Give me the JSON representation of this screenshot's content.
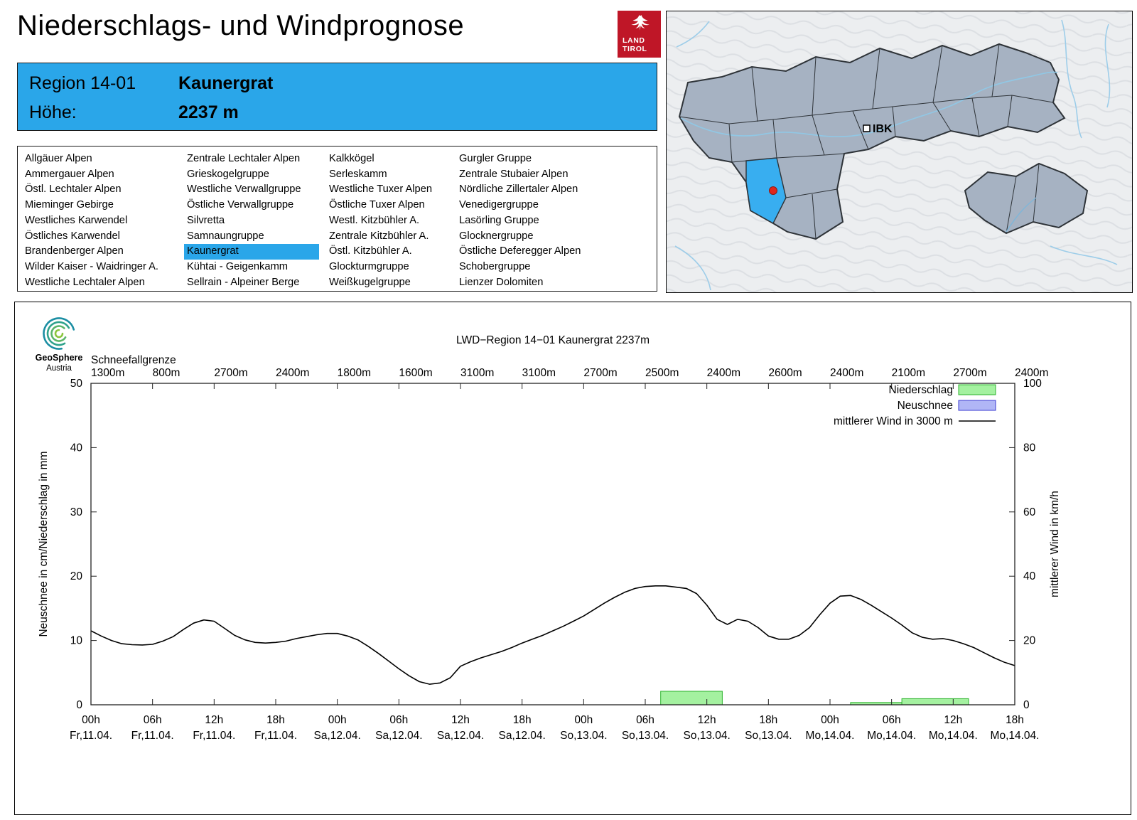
{
  "page": {
    "title": "Niederschlags- und Windprognose"
  },
  "brand": {
    "line1": "LAND",
    "line2": "TIROL"
  },
  "region_info": {
    "region_label": "Region 14-01",
    "region_name": "Kaunergrat",
    "altitude_label": "Höhe:",
    "altitude_value": "2237 m"
  },
  "region_list": {
    "selected": "Kaunergrat",
    "columns": [
      [
        "Allgäuer Alpen",
        "Ammergauer Alpen",
        "Östl. Lechtaler Alpen",
        "Mieminger Gebirge",
        "Westliches Karwendel",
        "Östliches Karwendel",
        "Brandenberger Alpen",
        "Wilder Kaiser - Waidringer A.",
        "Westliche Lechtaler Alpen"
      ],
      [
        "Zentrale Lechtaler Alpen",
        "Grieskogelgruppe",
        "Westliche Verwallgruppe",
        "Östliche Verwallgruppe",
        "Silvretta",
        "Samnaungruppe",
        "Kaunergrat",
        "Kühtai - Geigenkamm",
        "Sellrain - Alpeiner Berge"
      ],
      [
        "Kalkkögel",
        "Serleskamm",
        "Westliche Tuxer Alpen",
        "Östliche Tuxer Alpen",
        "Westl. Kitzbühler A.",
        "Zentrale Kitzbühler A.",
        "Östl. Kitzbühler A.",
        "Glockturmgruppe",
        "Weißkugelgruppe"
      ],
      [
        "Gurgler Gruppe",
        "Zentrale Stubaier Alpen",
        "Nördliche Zillertaler Alpen",
        "Venedigergruppe",
        "Lasörling Gruppe",
        "Glocknergruppe",
        "Östliche Deferegger Alpen",
        "Schobergruppe",
        "Lienzer Dolomiten"
      ]
    ]
  },
  "map": {
    "city_label": "IBK",
    "highlight_color": "#38aef0"
  },
  "logo_geosphere": {
    "name": "GeoSphere",
    "sub": "Austria"
  },
  "chart_data": {
    "type": "line+bar",
    "title": "LWD−Region 14−01 Kaunergrat 2237m",
    "snowline_label": "Schneefallgrenze",
    "snowline_values": [
      "1300m",
      "800m",
      "2700m",
      "2400m",
      "1800m",
      "1600m",
      "3100m",
      "3100m",
      "2700m",
      "2500m",
      "2400m",
      "2600m",
      "2400m",
      "2100m",
      "2700m",
      "2400m"
    ],
    "ylabel_left": "Neuschnee in cm/Niederschlag in mm",
    "ylabel_right": "mittlerer Wind in km/h",
    "ylim_left": [
      0,
      50
    ],
    "ylim_right": [
      0,
      100
    ],
    "x_hours_total": 90,
    "x_ticks": [
      {
        "hour": 0,
        "time": "00h",
        "date": "Fr,11.04."
      },
      {
        "hour": 6,
        "time": "06h",
        "date": "Fr,11.04."
      },
      {
        "hour": 12,
        "time": "12h",
        "date": "Fr,11.04."
      },
      {
        "hour": 18,
        "time": "18h",
        "date": "Fr,11.04."
      },
      {
        "hour": 24,
        "time": "00h",
        "date": "Sa,12.04."
      },
      {
        "hour": 30,
        "time": "06h",
        "date": "Sa,12.04."
      },
      {
        "hour": 36,
        "time": "12h",
        "date": "Sa,12.04."
      },
      {
        "hour": 42,
        "time": "18h",
        "date": "Sa,12.04."
      },
      {
        "hour": 48,
        "time": "00h",
        "date": "So,13.04."
      },
      {
        "hour": 54,
        "time": "06h",
        "date": "So,13.04."
      },
      {
        "hour": 60,
        "time": "12h",
        "date": "So,13.04."
      },
      {
        "hour": 66,
        "time": "18h",
        "date": "So,13.04."
      },
      {
        "hour": 72,
        "time": "00h",
        "date": "Mo,14.04."
      },
      {
        "hour": 78,
        "time": "06h",
        "date": "Mo,14.04."
      },
      {
        "hour": 84,
        "time": "12h",
        "date": "Mo,14.04."
      },
      {
        "hour": 90,
        "time": "18h",
        "date": "Mo,14.04."
      }
    ],
    "legend": [
      {
        "label": "Niederschlag",
        "type": "box",
        "color": "#a4f1a0",
        "border": "#2db32d"
      },
      {
        "label": "Neuschnee",
        "type": "box",
        "color": "#b0b6f6",
        "border": "#3a3ad0"
      },
      {
        "label": "mittlerer Wind in 3000 m",
        "type": "line"
      }
    ],
    "colors": {
      "precip_fill": "#a4f1a0",
      "precip_border": "#2db32d",
      "wind_line": "#000000"
    },
    "wind_kmh": [
      [
        0,
        23
      ],
      [
        1,
        21.4
      ],
      [
        2,
        20
      ],
      [
        3,
        19
      ],
      [
        4,
        18.7
      ],
      [
        5,
        18.6
      ],
      [
        6,
        18.8
      ],
      [
        7,
        19.8
      ],
      [
        8,
        21.2
      ],
      [
        9,
        23.4
      ],
      [
        10,
        25.4
      ],
      [
        11,
        26.4
      ],
      [
        12,
        26
      ],
      [
        13,
        23.8
      ],
      [
        14,
        21.6
      ],
      [
        15,
        20.2
      ],
      [
        16,
        19.4
      ],
      [
        17,
        19.2
      ],
      [
        18,
        19.4
      ],
      [
        19,
        19.8
      ],
      [
        20,
        20.6
      ],
      [
        21,
        21.2
      ],
      [
        22,
        21.8
      ],
      [
        23,
        22.2
      ],
      [
        24,
        22.2
      ],
      [
        25,
        21.4
      ],
      [
        26,
        20.2
      ],
      [
        27,
        18.2
      ],
      [
        28,
        16
      ],
      [
        29,
        13.6
      ],
      [
        30,
        11.2
      ],
      [
        31,
        9
      ],
      [
        32,
        7.2
      ],
      [
        33,
        6.4
      ],
      [
        34,
        6.8
      ],
      [
        35,
        8.4
      ],
      [
        36,
        12
      ],
      [
        37,
        13.4
      ],
      [
        38,
        14.6
      ],
      [
        39,
        15.6
      ],
      [
        40,
        16.6
      ],
      [
        41,
        17.8
      ],
      [
        42,
        19.2
      ],
      [
        43,
        20.4
      ],
      [
        44,
        21.6
      ],
      [
        45,
        23
      ],
      [
        46,
        24.4
      ],
      [
        47,
        26
      ],
      [
        48,
        27.6
      ],
      [
        49,
        29.6
      ],
      [
        50,
        31.6
      ],
      [
        51,
        33.4
      ],
      [
        52,
        35
      ],
      [
        53,
        36.2
      ],
      [
        54,
        36.8
      ],
      [
        55,
        37
      ],
      [
        56,
        37
      ],
      [
        57,
        36.6
      ],
      [
        58,
        36.2
      ],
      [
        59,
        34.6
      ],
      [
        60,
        31
      ],
      [
        61,
        26.6
      ],
      [
        62,
        25
      ],
      [
        63,
        26.6
      ],
      [
        64,
        26
      ],
      [
        65,
        24
      ],
      [
        66,
        21.4
      ],
      [
        67,
        20.4
      ],
      [
        68,
        20.4
      ],
      [
        69,
        21.6
      ],
      [
        70,
        24
      ],
      [
        71,
        28
      ],
      [
        72,
        31.6
      ],
      [
        73,
        33.8
      ],
      [
        74,
        34
      ],
      [
        75,
        32.8
      ],
      [
        76,
        31
      ],
      [
        77,
        29
      ],
      [
        78,
        27
      ],
      [
        79,
        24.8
      ],
      [
        80,
        22.4
      ],
      [
        81,
        21
      ],
      [
        82,
        20.4
      ],
      [
        83,
        20.6
      ],
      [
        84,
        20
      ],
      [
        85,
        19
      ],
      [
        86,
        17.8
      ],
      [
        87,
        16.2
      ],
      [
        88,
        14.6
      ],
      [
        89,
        13.2
      ],
      [
        90,
        12.2
      ]
    ],
    "precip_bars_mm": [
      [
        55.5,
        61.5,
        2.1
      ],
      [
        74,
        79,
        0.35
      ],
      [
        79,
        85.5,
        0.95
      ]
    ],
    "neuschnee_bars_cm": []
  }
}
